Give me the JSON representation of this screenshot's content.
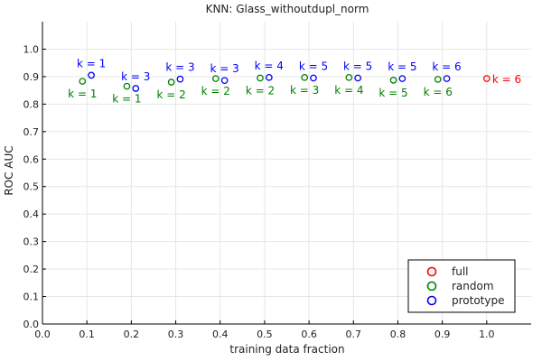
{
  "chart_data": {
    "type": "scatter",
    "title": "KNN: Glass_withoutdupl_norm",
    "xlabel": "training data fraction",
    "ylabel": "ROC AUC",
    "xlim": [
      0.0,
      1.1
    ],
    "ylim": [
      0.0,
      1.1
    ],
    "xticks": [
      0.0,
      0.1,
      0.2,
      0.3,
      0.4,
      0.5,
      0.6,
      0.7,
      0.8,
      0.9,
      1.0
    ],
    "xtick_labels": [
      "0.0",
      "0.1",
      "0.2",
      "0.3",
      "0.4",
      "0.5",
      "0.6",
      "0.7",
      "0.8",
      "0.9",
      "1.0"
    ],
    "yticks": [
      0.0,
      0.1,
      0.2,
      0.3,
      0.4,
      0.5,
      0.6,
      0.7,
      0.8,
      0.9,
      1.0
    ],
    "ytick_labels": [
      "0.0",
      "0.1",
      "0.2",
      "0.3",
      "0.4",
      "0.5",
      "0.6",
      "0.7",
      "0.8",
      "0.9",
      "1.0"
    ],
    "grid": true,
    "legend_position": "bottom-right",
    "series": [
      {
        "name": "full",
        "color": "#ff0000",
        "points": [
          {
            "x": 1.0,
            "y": 0.893,
            "label": "k = 6"
          }
        ]
      },
      {
        "name": "random",
        "color": "#008000",
        "points": [
          {
            "x": 0.09,
            "y": 0.883,
            "label": "k = 1"
          },
          {
            "x": 0.19,
            "y": 0.865,
            "label": "k = 1"
          },
          {
            "x": 0.29,
            "y": 0.88,
            "label": "k = 2"
          },
          {
            "x": 0.39,
            "y": 0.893,
            "label": "k = 2"
          },
          {
            "x": 0.49,
            "y": 0.895,
            "label": "k = 2"
          },
          {
            "x": 0.59,
            "y": 0.897,
            "label": "k = 3"
          },
          {
            "x": 0.69,
            "y": 0.897,
            "label": "k = 4"
          },
          {
            "x": 0.79,
            "y": 0.887,
            "label": "k = 5"
          },
          {
            "x": 0.89,
            "y": 0.89,
            "label": "k = 6"
          }
        ]
      },
      {
        "name": "prototype",
        "color": "#0000ff",
        "points": [
          {
            "x": 0.11,
            "y": 0.905,
            "label": "k = 1"
          },
          {
            "x": 0.21,
            "y": 0.857,
            "label": "k = 3"
          },
          {
            "x": 0.31,
            "y": 0.891,
            "label": "k = 3"
          },
          {
            "x": 0.41,
            "y": 0.886,
            "label": "k = 3"
          },
          {
            "x": 0.51,
            "y": 0.897,
            "label": "k = 4"
          },
          {
            "x": 0.61,
            "y": 0.895,
            "label": "k = 5"
          },
          {
            "x": 0.71,
            "y": 0.895,
            "label": "k = 5"
          },
          {
            "x": 0.81,
            "y": 0.893,
            "label": "k = 5"
          },
          {
            "x": 0.91,
            "y": 0.893,
            "label": "k = 6"
          }
        ]
      }
    ]
  }
}
